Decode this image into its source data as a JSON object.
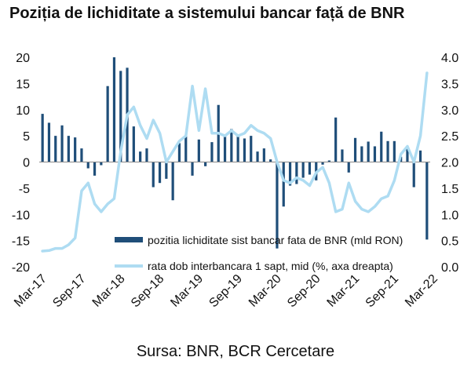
{
  "chart_data": {
    "type": "bar+line",
    "title": "Poziția de lichiditate a sistemului bancar față de BNR",
    "source": "Sursa: BNR, BCR Cercetare",
    "x_tick_labels": [
      "Mar-17",
      "Sep-17",
      "Mar-18",
      "Sep-18",
      "Mar-19",
      "Sep-19",
      "Mar-20",
      "Sep-20",
      "Mar-21",
      "Sep-21",
      "Mar-22"
    ],
    "y_left": {
      "min": -20,
      "max": 20,
      "ticks": [
        "20",
        "15",
        "10",
        "5",
        "0",
        "-5",
        "-10",
        "-15",
        "-20"
      ]
    },
    "y_right": {
      "min": 0.0,
      "max": 4.0,
      "ticks": [
        "4.0",
        "3.5",
        "3.0",
        "2.5",
        "2.0",
        "1.5",
        "1.0",
        "0.5",
        "0.0"
      ]
    },
    "series": [
      {
        "name": "pozitia lichiditate sist bancar fata de BNR (mld RON)",
        "type": "bar",
        "axis": "left",
        "color": "#1f4e79",
        "values": [
          9.2,
          7.5,
          5.0,
          7.0,
          5.0,
          4.7,
          2.6,
          -1.2,
          -2.6,
          -0.6,
          14.5,
          20.0,
          17.4,
          18.0,
          6.8,
          2.0,
          2.6,
          -4.8,
          -4.0,
          -3.2,
          -7.3,
          3.6,
          5.0,
          -2.6,
          4.3,
          -0.8,
          3.8,
          10.9,
          5.0,
          6.3,
          5.0,
          4.5,
          5.0,
          2.0,
          2.6,
          0.5,
          -16.5,
          -8.5,
          -4.5,
          -4.2,
          -3.0,
          -2.4,
          -3.5,
          -0.5,
          0.3,
          8.5,
          2.4,
          -2.0,
          4.6,
          3.0,
          3.9,
          3.0,
          5.8,
          4.0,
          4.0,
          1.0,
          3.0,
          -4.8,
          2.2,
          -14.8
        ]
      },
      {
        "name": "rata dob interbancara 1 sapt, mid (%, axa dreapta)",
        "type": "line",
        "axis": "right",
        "color": "#aedcf2",
        "values": [
          0.3,
          0.31,
          0.35,
          0.35,
          0.42,
          0.55,
          1.45,
          1.6,
          1.2,
          1.05,
          1.2,
          1.3,
          2.2,
          2.9,
          3.05,
          2.7,
          2.45,
          2.8,
          2.55,
          2.0,
          2.2,
          2.4,
          2.5,
          3.45,
          2.6,
          3.4,
          2.55,
          2.55,
          2.5,
          2.6,
          2.5,
          2.55,
          2.7,
          2.6,
          2.55,
          2.45,
          2.0,
          1.65,
          1.6,
          1.7,
          1.65,
          1.55,
          1.8,
          1.9,
          1.6,
          1.05,
          1.1,
          1.6,
          1.25,
          1.1,
          1.05,
          1.15,
          1.3,
          1.35,
          1.65,
          2.15,
          2.3,
          2.0,
          2.5,
          3.7
        ]
      }
    ]
  }
}
